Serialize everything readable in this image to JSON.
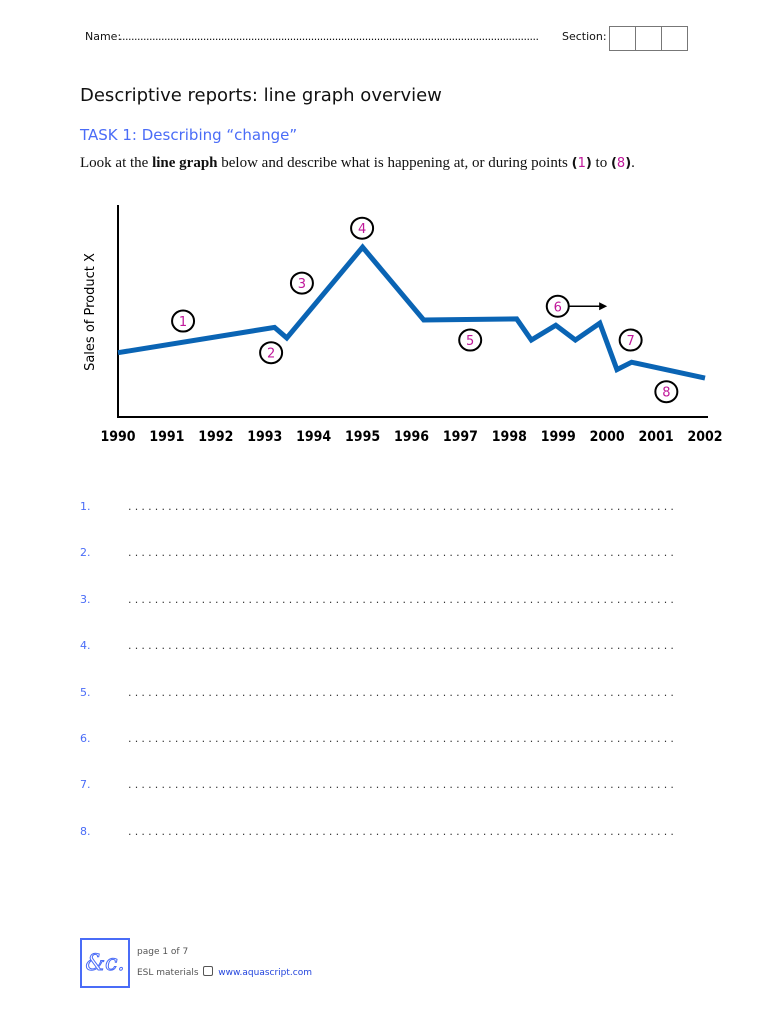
{
  "header": {
    "name_label": "Name:",
    "name_dots": "..................................................................................................................................................",
    "section_label": "Section:"
  },
  "title": "Descriptive reports: line graph overview",
  "task": "TASK 1: Describing “change”",
  "instructions": {
    "part1": "Look at the ",
    "bold": "line graph",
    "part2": " below and describe what is happening at, or during points ",
    "open1": "(",
    "num1": "1",
    "close1": ")",
    "to": " to ",
    "open2": "(",
    "num2": "8",
    "close2": ")",
    "end": "."
  },
  "chart_data": {
    "type": "line",
    "title": "",
    "xlabel": "",
    "ylabel": "Sales of Product X",
    "xlim": [
      1990,
      2002
    ],
    "ylim": [
      0,
      100
    ],
    "x_ticks": [
      "1990",
      "1991",
      "1992",
      "1993",
      "1994",
      "1995",
      "1996",
      "1997",
      "1998",
      "1999",
      "2000",
      "2001",
      "2002"
    ],
    "y_ticks": [],
    "grid": false,
    "line_color": "#0a64b4",
    "series": [
      {
        "x": [
          1990,
          1993.2,
          1993.45,
          1995,
          1996.25,
          1998.15,
          1998.45,
          1998.95,
          1999.35,
          1999.85,
          2000.2,
          2000.5,
          2002
        ],
        "y": [
          30,
          42,
          37,
          80,
          45.5,
          46,
          36,
          43,
          36,
          44,
          22,
          25.5,
          18
        ]
      }
    ],
    "annotations": [
      {
        "label": "1",
        "x": 1991.33,
        "y": 45
      },
      {
        "label": "2",
        "x": 1993.13,
        "y": 30
      },
      {
        "label": "3",
        "x": 1993.76,
        "y": 63
      },
      {
        "label": "4",
        "x": 1994.99,
        "y": 89
      },
      {
        "label": "5",
        "x": 1997.2,
        "y": 36
      },
      {
        "label": "6",
        "x": 1998.99,
        "y": 52,
        "arrow_from": 1998.9,
        "arrow_to": 2000.0
      },
      {
        "label": "7",
        "x": 2000.48,
        "y": 36
      },
      {
        "label": "8",
        "x": 2001.21,
        "y": 11.5
      }
    ],
    "annotation_color": "#c0179a"
  },
  "answers": [
    {
      "num": "1."
    },
    {
      "num": "2."
    },
    {
      "num": "3."
    },
    {
      "num": "4."
    },
    {
      "num": "5."
    },
    {
      "num": "6."
    },
    {
      "num": "7."
    },
    {
      "num": "8."
    }
  ],
  "answer_dots": "..................................................................................",
  "footer": {
    "logo": "&c.",
    "page": "page 1 of 7",
    "esl": "ESL materials",
    "url": "www.aquascript.com"
  }
}
